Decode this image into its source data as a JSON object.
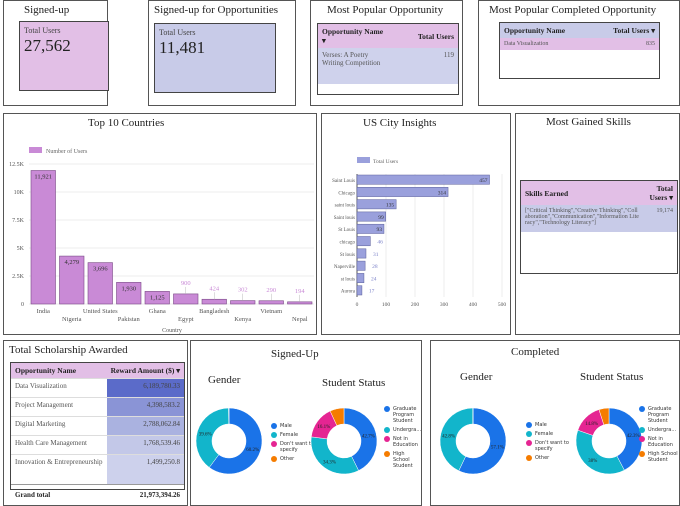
{
  "kpi_signed_up": {
    "title": "Signed-up",
    "label": "Total Users",
    "value": "27,562"
  },
  "kpi_opps": {
    "title": "Signed-up for Opportunities",
    "label": "Total Users",
    "value": "11,481"
  },
  "popular": {
    "title": "Most Popular Opportunity",
    "col1": "Opportunity Name ▾",
    "col2": "Total Users",
    "row": {
      "name": "Verses: A Poetry Writing Competition",
      "value": "119"
    }
  },
  "popular_completed": {
    "title": "Most Popular Completed Opportunity",
    "col1": "Opportunity Name",
    "col2": "Total Users ▾",
    "row": {
      "name": "Data Visualization",
      "value": "835"
    }
  },
  "skills": {
    "title": "Most Gained Skills",
    "col1": "Skills Earned",
    "col2": "Total Users ▾",
    "row": {
      "name": "[\"Critical Thinking\",\"Creative Thinking\",\"Collaboration\",\"Communication\",\"Information Literacy\",\"Technology Literacy\"]",
      "value": "19,174"
    }
  },
  "scholarship": {
    "title": "Total Scholarship Awarded",
    "col1": "Opportunity Name",
    "col2": "Reward Amount ($) ▾",
    "rows": [
      {
        "name": "Data Visualization",
        "value": "6,189,780.33",
        "bg": "#5b6bc9"
      },
      {
        "name": "Project Management",
        "value": "4,398,583.2",
        "bg": "#8a94d6"
      },
      {
        "name": "Digital Marketing",
        "value": "2,788,062.84",
        "bg": "#aab2e0"
      },
      {
        "name": "Health Care Management",
        "value": "1,768,539.46",
        "bg": "#c3c8e8"
      },
      {
        "name": "Innovation & Entrepreneurship",
        "value": "1,499,250.8",
        "bg": "#cdd1ec"
      }
    ],
    "total_label": "Grand total",
    "total": "21,973,394.26"
  },
  "colors": {
    "pink": "#e2bfe6",
    "lavender": "#c8cbe8",
    "bar_purple": "#c98ad6",
    "bar_blue": "#9aa0dc",
    "male": "#1a73e8",
    "female": "#12b5cb",
    "dont": "#e52592",
    "other": "#f57c00"
  },
  "chart_data": [
    {
      "type": "bar",
      "title": "Top 10 Countries",
      "xlabel": "Country",
      "ylabel": "",
      "legend": "top-left",
      "series": [
        {
          "name": "Number of Users",
          "values": [
            11921,
            4279,
            3696,
            1930,
            1125,
            900,
            424,
            302,
            290,
            194
          ]
        }
      ],
      "categories": [
        "India",
        "Nigeria",
        "United States",
        "Pakistan",
        "Ghana",
        "Egypt",
        "Bangladesh",
        "Kenya",
        "Vietnam",
        "Nepal"
      ],
      "value_labels": [
        "11,921",
        "4,279",
        "3,696",
        "1,930",
        "1,125",
        "900",
        "424",
        "302",
        "290",
        "194"
      ],
      "ylim": [
        0,
        12500
      ],
      "yticks": [
        "0",
        "2.5K",
        "5K",
        "7.5K",
        "10K",
        "12.5K"
      ],
      "grid": true
    },
    {
      "type": "bar",
      "orientation": "horizontal",
      "title": "US City Insights",
      "legend": "top-left",
      "series": [
        {
          "name": "Total Users",
          "values": [
            457,
            314,
            135,
            99,
            93,
            46,
            31,
            28,
            24,
            17
          ]
        }
      ],
      "categories": [
        "Saint Louis",
        "Chicago",
        "saint louis",
        "Saint louis",
        "St Louis",
        "chicago",
        "St louis",
        "Naperville",
        "st louis",
        "Aurora"
      ],
      "xlim": [
        0,
        500
      ],
      "xticks": [
        "0",
        "100",
        "200",
        "300",
        "400",
        "500"
      ],
      "grid": true
    },
    {
      "type": "pie",
      "donut": true,
      "group": "Signed-Up",
      "title": "Gender",
      "labels": [
        "Male",
        "Female",
        "Don't want to specify",
        "Other"
      ],
      "values": [
        60.2,
        39.6,
        0.1,
        0.1
      ],
      "value_labels": [
        "60.2%",
        "39.6%",
        "",
        ""
      ]
    },
    {
      "type": "pie",
      "donut": true,
      "group": "Signed-Up",
      "title": "Student Status",
      "labels": [
        "Graduate Program Student",
        "Undergra...",
        "Not in Education",
        "High School Student"
      ],
      "values": [
        42.7,
        34.3,
        16.1,
        6.9
      ],
      "value_labels": [
        "42.7%",
        "34.3%",
        "16.1%",
        ""
      ]
    },
    {
      "type": "pie",
      "donut": true,
      "group": "Completed",
      "title": "Gender",
      "labels": [
        "Male",
        "Female",
        "Don't want to specify",
        "Other"
      ],
      "values": [
        57.1,
        42.8,
        0.05,
        0.05
      ],
      "value_labels": [
        "57.1%",
        "42.8%",
        "",
        ""
      ]
    },
    {
      "type": "pie",
      "donut": true,
      "group": "Completed",
      "title": "Student Status",
      "labels": [
        "Graduate Program Student",
        "Undergra...",
        "Not in Education",
        "High School Student"
      ],
      "values": [
        42.3,
        38.0,
        14.8,
        4.9
      ],
      "value_labels": [
        "42.3%",
        "38%",
        "14.8%",
        ""
      ]
    }
  ],
  "donut_groups": {
    "signed": "Signed-Up",
    "completed": "Completed"
  }
}
